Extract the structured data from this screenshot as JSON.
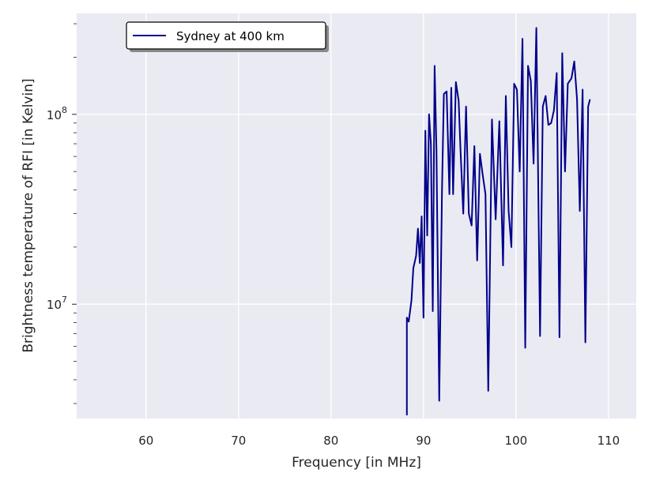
{
  "chart_data": {
    "type": "line",
    "xlabel": "Frequency [in MHz]",
    "ylabel": "Brightness temperature of RFI [in Kelvin]",
    "xlim": [
      52.5,
      113
    ],
    "ylim": [
      2500000.0,
      340000000.0
    ],
    "yscale": "log",
    "grid": true,
    "legend_position": "top-left",
    "colors": {
      "background": "#eaeaf2",
      "grid": "#ffffff",
      "series": "#00008b"
    },
    "x_ticks": [
      {
        "value": 60,
        "label": "60"
      },
      {
        "value": 70,
        "label": "70"
      },
      {
        "value": 80,
        "label": "80"
      },
      {
        "value": 90,
        "label": "90"
      },
      {
        "value": 100,
        "label": "100"
      },
      {
        "value": 110,
        "label": "110"
      }
    ],
    "y_major_ticks": [
      {
        "value": 10000000.0,
        "base": "10",
        "exp": "7"
      },
      {
        "value": 100000000.0,
        "base": "10",
        "exp": "8"
      }
    ],
    "series": [
      {
        "name": "Sydney at 400 km",
        "x": [
          88.2,
          88.2,
          88.4,
          88.7,
          88.9,
          89.2,
          89.4,
          89.6,
          89.8,
          90.0,
          90.2,
          90.4,
          90.6,
          90.8,
          91.0,
          91.2,
          91.4,
          91.7,
          92.0,
          92.2,
          92.5,
          92.8,
          93.0,
          93.2,
          93.5,
          93.8,
          94.0,
          94.3,
          94.6,
          94.9,
          95.2,
          95.5,
          95.8,
          96.1,
          96.4,
          96.7,
          97.0,
          97.4,
          97.8,
          98.2,
          98.6,
          98.9,
          99.2,
          99.5,
          99.8,
          100.1,
          100.4,
          100.7,
          101.0,
          101.3,
          101.6,
          101.9,
          102.2,
          102.6,
          102.9,
          103.2,
          103.5,
          103.8,
          104.1,
          104.4,
          104.7,
          105.0,
          105.3,
          105.6,
          106.0,
          106.3,
          106.6,
          106.9,
          107.2,
          107.5,
          107.8,
          108.0
        ],
        "y": [
          2600000.0,
          8500000.0,
          8100000.0,
          10500000.0,
          15500000.0,
          18000000.0,
          25000000.0,
          16500000.0,
          29000000.0,
          8500000.0,
          82000000.0,
          23000000.0,
          100000000.0,
          70000000.0,
          9200000.0,
          180000000.0,
          65000000.0,
          3100000.0,
          40000000.0,
          128000000.0,
          132000000.0,
          38000000.0,
          138000000.0,
          38000000.0,
          148000000.0,
          118000000.0,
          65000000.0,
          30000000.0,
          110000000.0,
          30000000.0,
          26000000.0,
          68000000.0,
          17000000.0,
          62000000.0,
          48000000.0,
          38000000.0,
          3500000.0,
          94000000.0,
          28000000.0,
          92000000.0,
          16000000.0,
          125000000.0,
          31000000.0,
          20000000.0,
          145000000.0,
          135000000.0,
          50000000.0,
          250000000.0,
          5900000.0,
          180000000.0,
          150000000.0,
          55000000.0,
          285000000.0,
          6800000.0,
          110000000.0,
          125000000.0,
          88000000.0,
          90000000.0,
          105000000.0,
          165000000.0,
          6700000.0,
          210000000.0,
          50000000.0,
          145000000.0,
          155000000.0,
          190000000.0,
          120000000.0,
          31000000.0,
          135000000.0,
          6300000.0,
          110000000.0,
          120000000.0
        ]
      }
    ]
  }
}
